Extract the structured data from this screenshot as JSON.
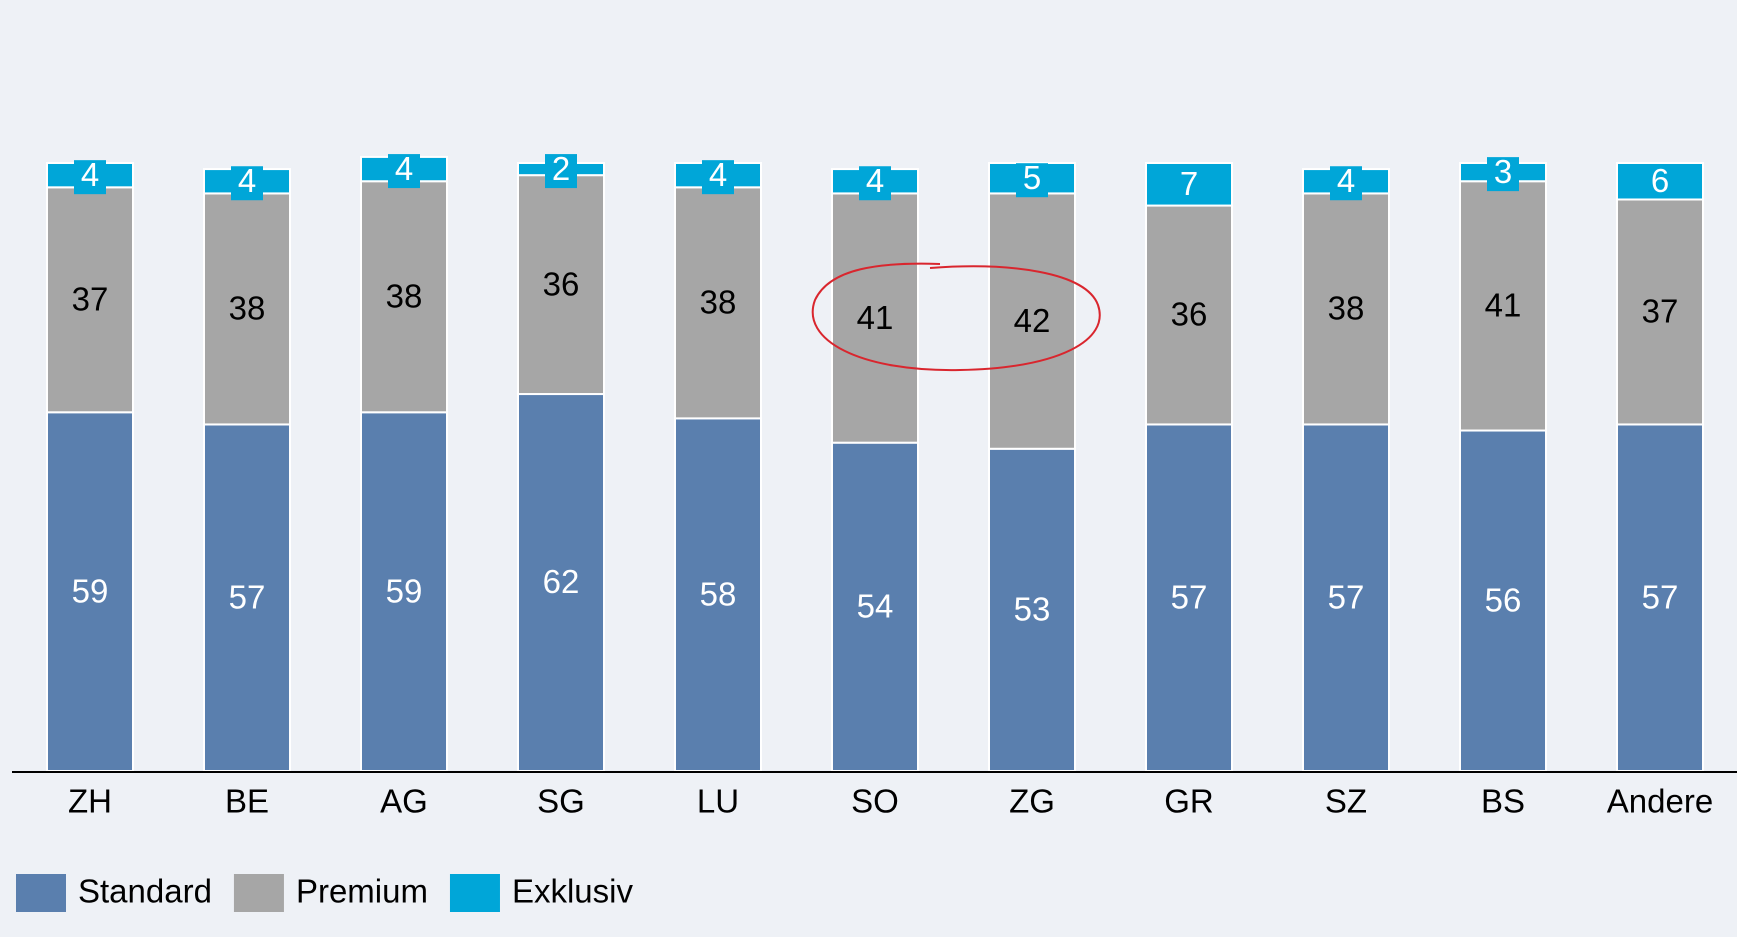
{
  "chart_data": {
    "type": "bar",
    "stacked": true,
    "categories": [
      "ZH",
      "BE",
      "AG",
      "SG",
      "LU",
      "SO",
      "ZG",
      "GR",
      "SZ",
      "BS",
      "Andere"
    ],
    "series": [
      {
        "name": "Standard",
        "color": "#5a7fae",
        "values": [
          59,
          57,
          59,
          62,
          58,
          54,
          53,
          57,
          57,
          56,
          57
        ]
      },
      {
        "name": "Premium",
        "color": "#a6a6a6",
        "values": [
          37,
          38,
          38,
          36,
          38,
          41,
          42,
          36,
          38,
          41,
          37
        ]
      },
      {
        "name": "Exklusiv",
        "color": "#00a6d8",
        "values": [
          4,
          4,
          4,
          2,
          4,
          4,
          5,
          7,
          4,
          3,
          6
        ]
      }
    ],
    "ylim": [
      0,
      100
    ],
    "legend": "bottom-left"
  }
}
